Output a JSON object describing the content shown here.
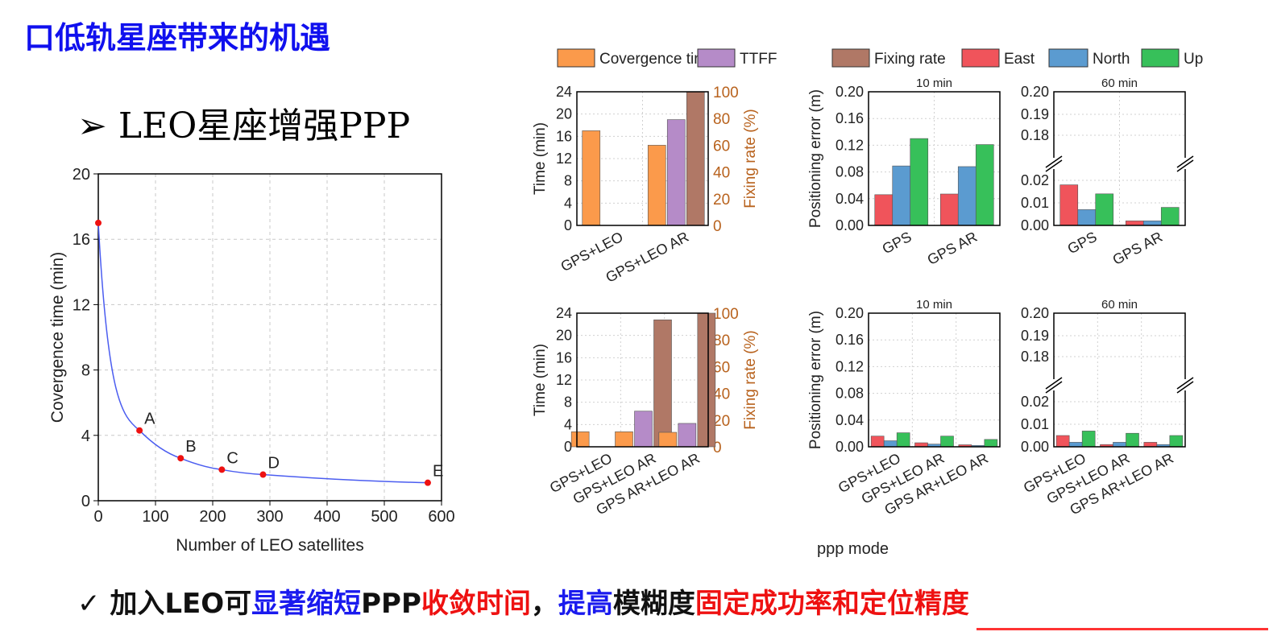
{
  "slide": {
    "title": "口低轨星座带来的机遇",
    "subtitle": "➢ LEO星座增强PPP",
    "conclusion": {
      "prefix": "✓ ",
      "parts": [
        {
          "text": "加入LEO可",
          "color": "black"
        },
        {
          "text": "显著缩短",
          "color": "blue"
        },
        {
          "text": "PPP",
          "color": "black"
        },
        {
          "text": "收敛时间",
          "color": "red"
        },
        {
          "text": "，",
          "color": "black"
        },
        {
          "text": "提高",
          "color": "blue"
        },
        {
          "text": "模糊度",
          "color": "black"
        },
        {
          "text": "固定成功率和定位精度",
          "color": "red"
        }
      ]
    },
    "colors": {
      "title_blue": "#1010ee",
      "accent_red": "#ee1111",
      "accent_blue": "#1a1aee"
    }
  },
  "chart_data": [
    {
      "id": "line",
      "type": "line",
      "xlabel": "Number of LEO satellites",
      "ylabel": "Covergence time (min)",
      "xlim": [
        0,
        600
      ],
      "ylim": [
        0,
        20
      ],
      "xticks": [
        0,
        100,
        200,
        300,
        400,
        500,
        600
      ],
      "yticks": [
        0,
        4,
        8,
        12,
        16,
        20
      ],
      "grid": true,
      "line_color": "#4b5df0",
      "point_color": "#ee1111",
      "points": [
        {
          "x": 0,
          "y": 17.0,
          "label": ""
        },
        {
          "x": 72,
          "y": 4.3,
          "label": "A"
        },
        {
          "x": 144,
          "y": 2.6,
          "label": "B"
        },
        {
          "x": 216,
          "y": 1.9,
          "label": "C"
        },
        {
          "x": 288,
          "y": 1.6,
          "label": "D"
        },
        {
          "x": 576,
          "y": 1.1,
          "label": "E"
        }
      ]
    },
    {
      "id": "legend",
      "type": "bar",
      "entries": [
        {
          "name": "Covergence time",
          "color": "#fb9a4b"
        },
        {
          "name": "TTFF",
          "color": "#b58bc8"
        },
        {
          "name": "Fixing rate",
          "color": "#b07866"
        },
        {
          "name": "East",
          "color": "#f0545b"
        },
        {
          "name": "North",
          "color": "#5b9bd0"
        },
        {
          "name": "Up",
          "color": "#37c05a"
        }
      ]
    },
    {
      "id": "top-time",
      "type": "bar",
      "categories": [
        "GPS+LEO",
        "GPS+LEO AR"
      ],
      "ylabel": "Time (min)",
      "y2label": "Fixing rate (%)",
      "ylim": [
        0,
        24
      ],
      "y2lim": [
        0,
        100
      ],
      "yticks": [
        0,
        4,
        8,
        12,
        16,
        20,
        24
      ],
      "y2ticks": [
        0,
        20,
        40,
        60,
        80,
        100
      ],
      "series": [
        {
          "name": "Covergence time",
          "axis": "left",
          "values": [
            17.0,
            14.4
          ]
        },
        {
          "name": "TTFF",
          "axis": "left",
          "values": [
            null,
            19.0
          ]
        },
        {
          "name": "Fixing rate",
          "axis": "right",
          "values": [
            null,
            100
          ]
        }
      ]
    },
    {
      "id": "bottom-time",
      "type": "bar",
      "categories": [
        "GPS+LEO",
        "GPS+LEO AR",
        "GPS AR+LEO AR"
      ],
      "ylabel": "Time (min)",
      "y2label": "Fixing rate (%)",
      "ylim": [
        0,
        24
      ],
      "y2lim": [
        0,
        100
      ],
      "yticks": [
        0,
        4,
        8,
        12,
        16,
        20,
        24
      ],
      "y2ticks": [
        0,
        20,
        40,
        60,
        80,
        100
      ],
      "series": [
        {
          "name": "Covergence time",
          "axis": "left",
          "values": [
            2.7,
            2.7,
            2.6
          ]
        },
        {
          "name": "TTFF",
          "axis": "left",
          "values": [
            null,
            6.4,
            4.2
          ]
        },
        {
          "name": "Fixing rate",
          "axis": "right",
          "values": [
            null,
            95,
            100
          ]
        }
      ]
    },
    {
      "id": "top-err10",
      "type": "bar",
      "title": "10 min",
      "ylabel": "Positioning error (m)",
      "categories": [
        "GPS",
        "GPS AR"
      ],
      "ylim": [
        0,
        0.2
      ],
      "yticks": [
        "0.00",
        "0.04",
        "0.08",
        "0.12",
        "0.16",
        "0.20"
      ],
      "series": [
        {
          "name": "East",
          "values": [
            0.046,
            0.047
          ]
        },
        {
          "name": "North",
          "values": [
            0.089,
            0.088
          ]
        },
        {
          "name": "Up",
          "values": [
            0.13,
            0.121
          ]
        }
      ]
    },
    {
      "id": "top-err60",
      "type": "bar",
      "title": "60 min",
      "categories": [
        "GPS",
        "GPS AR"
      ],
      "broken_axis": true,
      "upper_ticks": [
        "0.18",
        "0.19",
        "0.20"
      ],
      "lower_ticks": [
        "0.00",
        "0.01",
        "0.02"
      ],
      "series": [
        {
          "name": "East",
          "values": [
            0.018,
            0.002
          ]
        },
        {
          "name": "North",
          "values": [
            0.007,
            0.002
          ]
        },
        {
          "name": "Up",
          "values": [
            0.014,
            0.008
          ]
        }
      ]
    },
    {
      "id": "bottom-err10",
      "type": "bar",
      "title": "10 min",
      "ylabel": "Positioning error (m)",
      "xlabel": "ppp mode",
      "categories": [
        "GPS+LEO",
        "GPS+LEO AR",
        "GPS AR+LEO AR"
      ],
      "ylim": [
        0,
        0.2
      ],
      "yticks": [
        "0.00",
        "0.04",
        "0.08",
        "0.12",
        "0.16",
        "0.20"
      ],
      "series": [
        {
          "name": "East",
          "values": [
            0.016,
            0.006,
            0.003
          ]
        },
        {
          "name": "North",
          "values": [
            0.009,
            0.004,
            0.002
          ]
        },
        {
          "name": "Up",
          "values": [
            0.021,
            0.016,
            0.011
          ]
        }
      ]
    },
    {
      "id": "bottom-err60",
      "type": "bar",
      "title": "60 min",
      "categories": [
        "GPS+LEO",
        "GPS+LEO AR",
        "GPS AR+LEO AR"
      ],
      "broken_axis": true,
      "upper_ticks": [
        "0.18",
        "0.19",
        "0.20"
      ],
      "lower_ticks": [
        "0.00",
        "0.01",
        "0.02"
      ],
      "series": [
        {
          "name": "East",
          "values": [
            0.005,
            0.001,
            0.002
          ]
        },
        {
          "name": "North",
          "values": [
            0.002,
            0.002,
            0.001
          ]
        },
        {
          "name": "Up",
          "values": [
            0.007,
            0.006,
            0.005
          ]
        }
      ]
    }
  ]
}
